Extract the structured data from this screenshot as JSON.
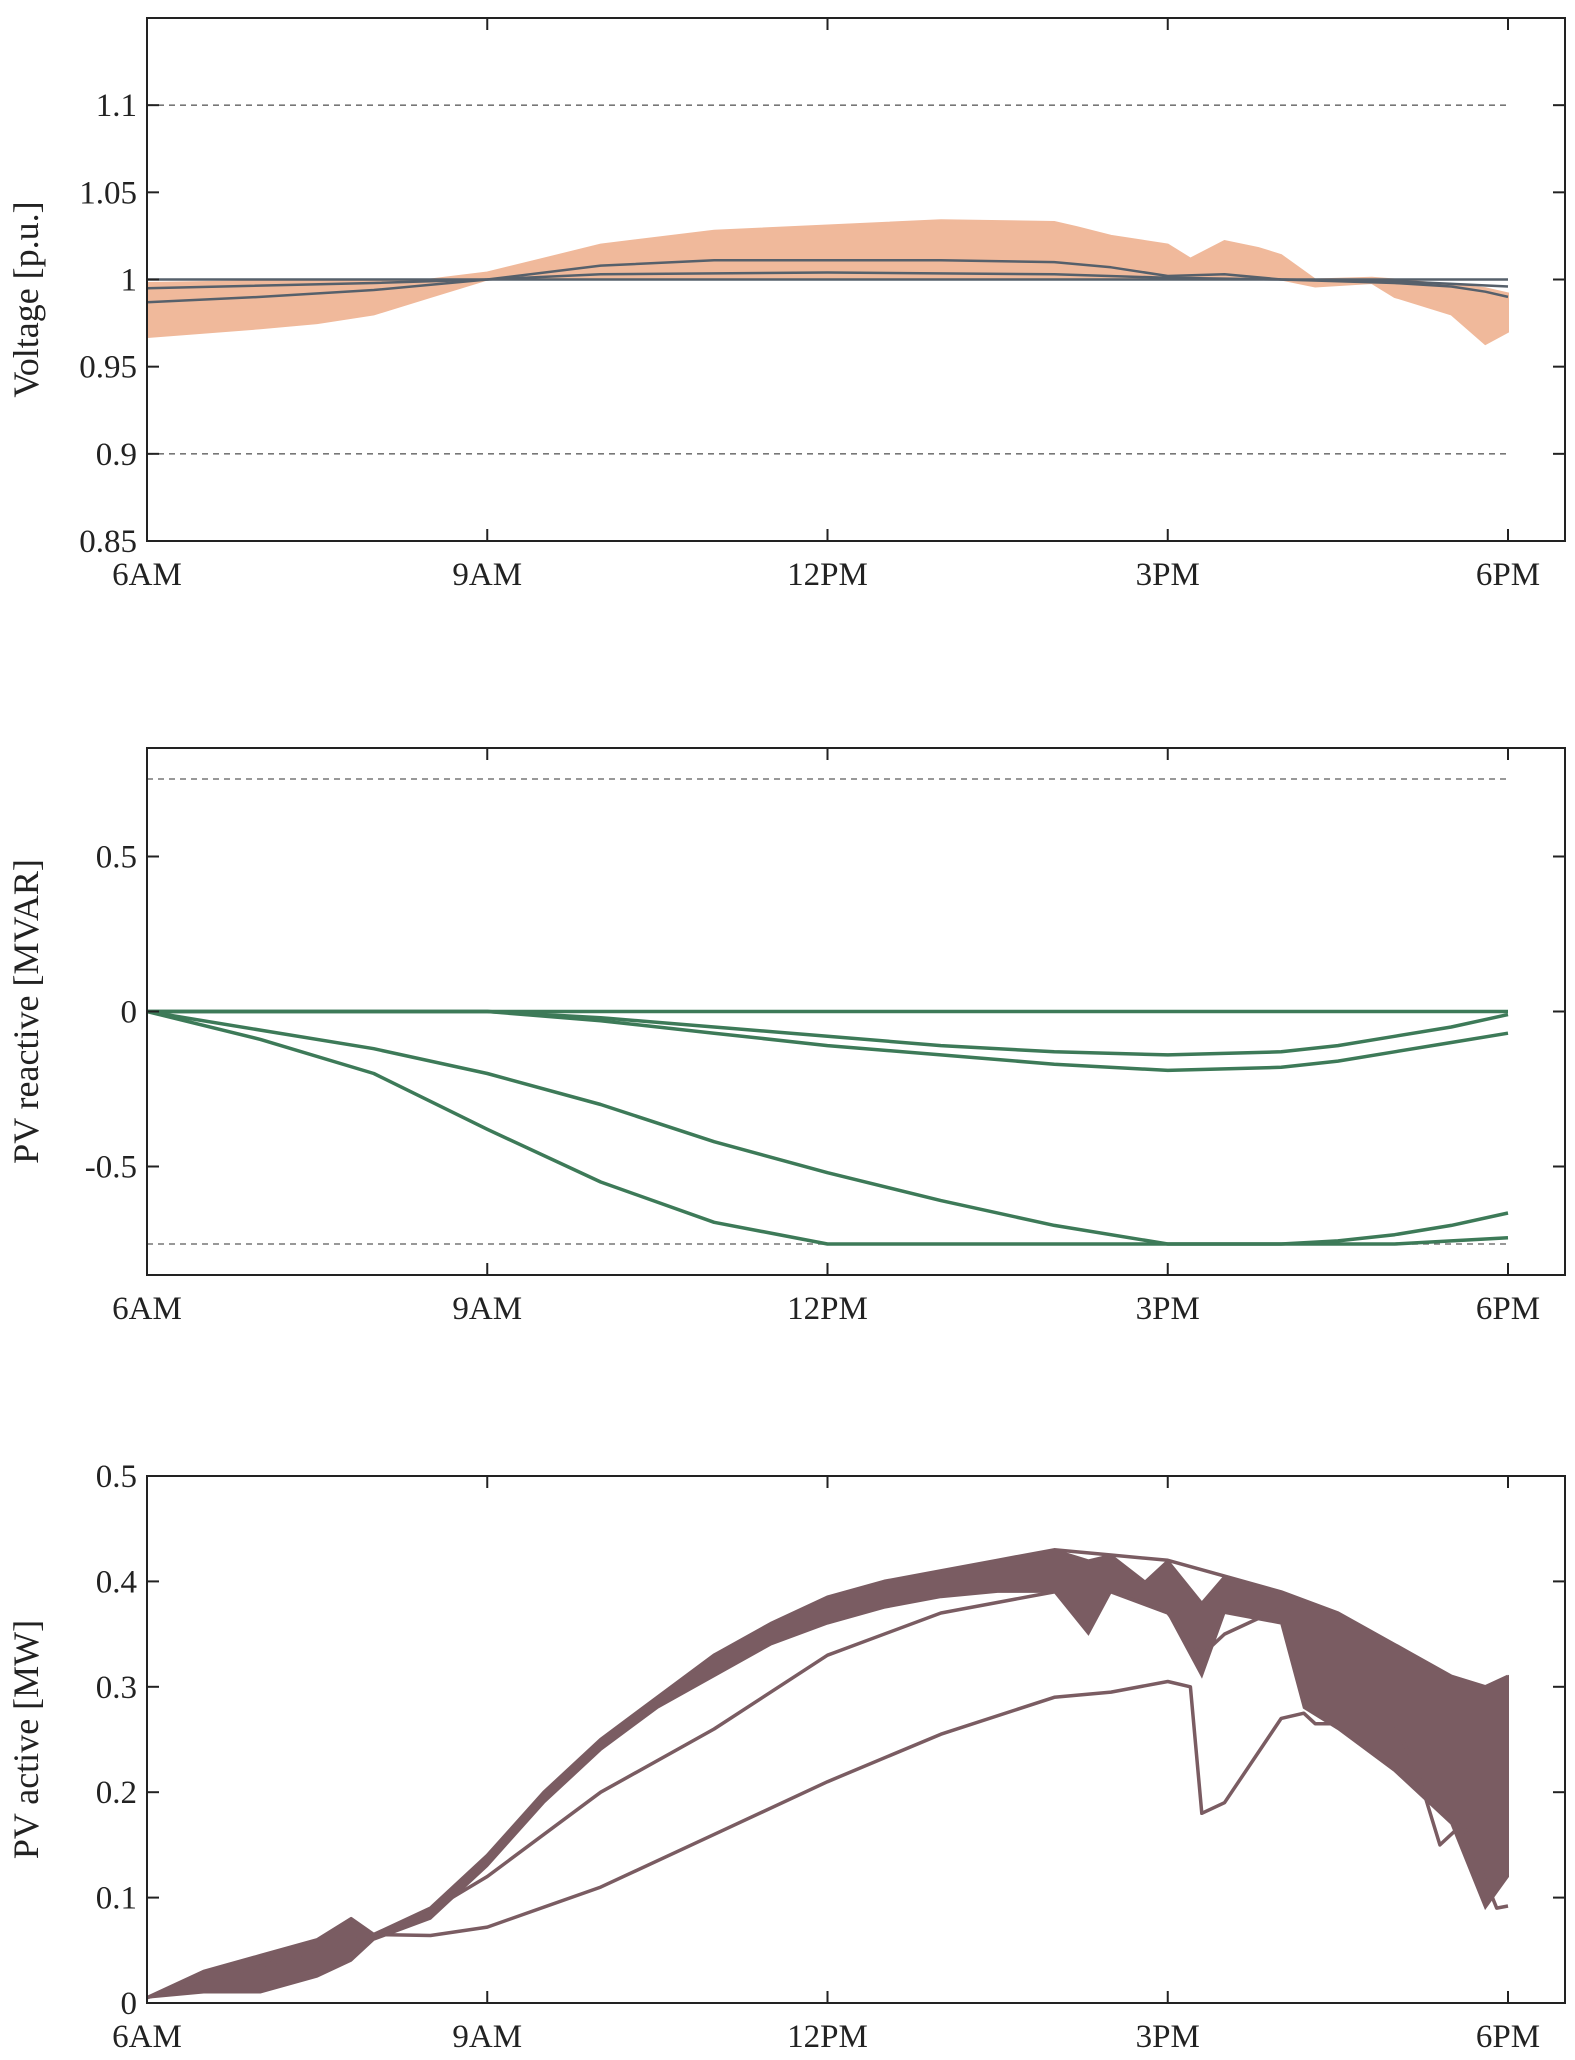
{
  "chart_data": [
    {
      "type": "area",
      "ylabel": "Voltage [p.u.]",
      "xlim": [
        "6AM",
        "6PM"
      ],
      "x_ticks": [
        "6AM",
        "9AM",
        "12PM",
        "3PM",
        "6PM"
      ],
      "ylim": [
        0.85,
        1.15
      ],
      "y_ticks": [
        "0.85",
        "0.9",
        "0.95",
        "1",
        "1.05",
        "1.1"
      ],
      "y_tick_values": [
        0.85,
        0.9,
        0.95,
        1.0,
        1.05,
        1.1
      ],
      "limit_lines": [
        0.9,
        1.1
      ],
      "grid": false,
      "colors": {
        "band": "#f0b99b",
        "line": "#56606b",
        "limit": "#777777"
      },
      "band": {
        "x_hours": [
          6,
          7,
          7.5,
          8,
          8.5,
          9,
          9.5,
          10,
          11,
          12,
          13,
          14,
          14.2,
          14.5,
          14.8,
          15,
          15.2,
          15.5,
          15.8,
          16,
          16.3,
          16.8,
          17,
          17.5,
          17.8,
          18
        ],
        "upper": [
          0.998,
          0.999,
          0.999,
          1.0,
          1.0,
          1.004,
          1.012,
          1.02,
          1.028,
          1.031,
          1.034,
          1.033,
          1.03,
          1.025,
          1.022,
          1.02,
          1.012,
          1.022,
          1.018,
          1.014,
          1.0,
          1.001,
          1.0,
          0.997,
          0.995,
          0.992
        ],
        "lower": [
          0.967,
          0.972,
          0.975,
          0.98,
          0.99,
          1.0,
          1.0,
          1.0,
          1.0,
          1.0,
          1.0,
          1.0,
          1.0,
          1.0,
          1.0,
          1.0,
          1.0,
          1.0,
          1.0,
          1.0,
          0.996,
          0.998,
          0.99,
          0.98,
          0.963,
          0.97
        ]
      },
      "series": [
        {
          "x_hours": [
            6,
            18
          ],
          "values": [
            1.0,
            1.0
          ]
        },
        {
          "x_hours": [
            6,
            7,
            8,
            9,
            10,
            11,
            12,
            13,
            14,
            14.5,
            15,
            15.5,
            16,
            17,
            17.5,
            17.8,
            18
          ],
          "values": [
            0.987,
            0.99,
            0.994,
            1.0,
            1.008,
            1.011,
            1.011,
            1.011,
            1.01,
            1.007,
            1.002,
            1.003,
            1.0,
            0.998,
            0.996,
            0.993,
            0.99
          ]
        },
        {
          "x_hours": [
            6,
            8,
            9,
            10,
            12,
            14,
            15,
            16,
            17,
            18
          ],
          "values": [
            0.995,
            0.998,
            1.0,
            1.003,
            1.004,
            1.003,
            1.001,
            1.0,
            0.999,
            0.996
          ]
        }
      ]
    },
    {
      "type": "line",
      "ylabel": "PV reactive [MVAR]",
      "xlim": [
        "6AM",
        "6PM"
      ],
      "x_ticks": [
        "6AM",
        "9AM",
        "12PM",
        "3PM",
        "6PM"
      ],
      "ylim": [
        -0.85,
        0.85
      ],
      "y_ticks": [
        "-0.5",
        "0",
        "0.5"
      ],
      "y_tick_values": [
        -0.5,
        0,
        0.5
      ],
      "limit_lines": [
        -0.75,
        0.75
      ],
      "grid": false,
      "colors": {
        "line": "#3d7a58",
        "limit": "#777777"
      },
      "series": [
        {
          "x_hours": [
            6,
            18
          ],
          "values": [
            0,
            0
          ]
        },
        {
          "x_hours": [
            6,
            9,
            10,
            11,
            12,
            13,
            14,
            15,
            16,
            16.5,
            17,
            17.5,
            18
          ],
          "values": [
            0,
            0,
            -0.02,
            -0.05,
            -0.08,
            -0.11,
            -0.13,
            -0.14,
            -0.13,
            -0.11,
            -0.08,
            -0.05,
            -0.01
          ]
        },
        {
          "x_hours": [
            6,
            9,
            10,
            11,
            12,
            13,
            14,
            15,
            16,
            16.5,
            17,
            17.5,
            18
          ],
          "values": [
            0,
            0,
            -0.03,
            -0.07,
            -0.11,
            -0.14,
            -0.17,
            -0.19,
            -0.18,
            -0.16,
            -0.13,
            -0.1,
            -0.07
          ]
        },
        {
          "x_hours": [
            6,
            7,
            8,
            9,
            10,
            11,
            12,
            13,
            14,
            15,
            16,
            16.5,
            17,
            17.5,
            18
          ],
          "values": [
            0,
            -0.06,
            -0.12,
            -0.2,
            -0.3,
            -0.42,
            -0.52,
            -0.61,
            -0.69,
            -0.75,
            -0.75,
            -0.74,
            -0.72,
            -0.69,
            -0.65
          ]
        },
        {
          "x_hours": [
            6,
            7,
            8,
            9,
            10,
            11,
            12,
            17,
            17.5,
            18
          ],
          "values": [
            0,
            -0.09,
            -0.2,
            -0.38,
            -0.55,
            -0.68,
            -0.75,
            -0.75,
            -0.74,
            -0.73
          ]
        }
      ]
    },
    {
      "type": "line",
      "ylabel": "PV active [MW]",
      "xlim": [
        "6AM",
        "6PM"
      ],
      "x_ticks": [
        "6AM",
        "9AM",
        "12PM",
        "3PM",
        "6PM"
      ],
      "ylim": [
        0,
        0.5
      ],
      "y_ticks": [
        "0",
        "0.1",
        "0.2",
        "0.3",
        "0.4",
        "0.5"
      ],
      "y_tick_values": [
        0,
        0.1,
        0.2,
        0.3,
        0.4,
        0.5
      ],
      "grid": false,
      "colors": {
        "line": "#7a5c62",
        "band": "#7a5c62"
      },
      "band": {
        "x_hours": [
          6,
          6.5,
          7,
          7.5,
          7.8,
          8,
          8.5,
          9,
          9.5,
          10,
          10.5,
          11,
          11.5,
          12,
          12.5,
          13,
          13.5,
          14,
          14.3,
          14.5,
          14.8,
          15,
          15.3,
          15.5,
          16,
          16.2,
          16.5,
          17,
          17.5,
          17.8,
          18
        ],
        "upper": [
          0.005,
          0.03,
          0.045,
          0.06,
          0.08,
          0.065,
          0.09,
          0.14,
          0.2,
          0.25,
          0.29,
          0.33,
          0.36,
          0.385,
          0.4,
          0.41,
          0.42,
          0.43,
          0.42,
          0.425,
          0.4,
          0.42,
          0.38,
          0.405,
          0.39,
          0.38,
          0.37,
          0.34,
          0.31,
          0.3,
          0.31
        ],
        "lower": [
          0.005,
          0.01,
          0.01,
          0.025,
          0.04,
          0.06,
          0.08,
          0.13,
          0.19,
          0.24,
          0.28,
          0.31,
          0.34,
          0.36,
          0.375,
          0.385,
          0.39,
          0.39,
          0.35,
          0.39,
          0.38,
          0.37,
          0.31,
          0.37,
          0.36,
          0.28,
          0.26,
          0.22,
          0.17,
          0.09,
          0.12
        ]
      },
      "series": [
        {
          "x_hours": [
            6,
            6.5,
            7,
            7.5,
            7.8,
            8,
            8.5,
            9,
            9.5,
            10,
            10.5,
            11,
            11.5,
            12,
            12.5,
            13,
            13.5,
            14,
            14.5,
            15,
            15.5,
            16,
            16.5,
            17,
            17.5,
            17.8,
            18
          ],
          "values": [
            0.005,
            0.03,
            0.045,
            0.06,
            0.08,
            0.065,
            0.09,
            0.14,
            0.2,
            0.25,
            0.29,
            0.33,
            0.36,
            0.385,
            0.4,
            0.41,
            0.42,
            0.43,
            0.425,
            0.42,
            0.405,
            0.39,
            0.37,
            0.34,
            0.31,
            0.3,
            0.31
          ]
        },
        {
          "x_hours": [
            8.3,
            9,
            10,
            11,
            12,
            13,
            14,
            14.5,
            15,
            15.3,
            15.5,
            16
          ],
          "values": [
            0.075,
            0.12,
            0.2,
            0.26,
            0.33,
            0.37,
            0.39,
            0.39,
            0.37,
            0.33,
            0.35,
            0.375
          ]
        },
        {
          "x_hours": [
            6,
            8,
            8.5,
            9,
            10,
            11,
            12,
            13,
            14,
            14.5,
            15,
            15.2,
            15.3,
            15.5,
            16,
            16.2,
            16.3,
            17,
            17.2,
            17.4,
            17.6,
            17.9,
            18
          ],
          "values": [
            0.005,
            0.065,
            0.064,
            0.072,
            0.11,
            0.16,
            0.21,
            0.255,
            0.29,
            0.295,
            0.305,
            0.3,
            0.18,
            0.19,
            0.27,
            0.275,
            0.265,
            0.265,
            0.22,
            0.15,
            0.17,
            0.09,
            0.092
          ]
        }
      ]
    }
  ]
}
